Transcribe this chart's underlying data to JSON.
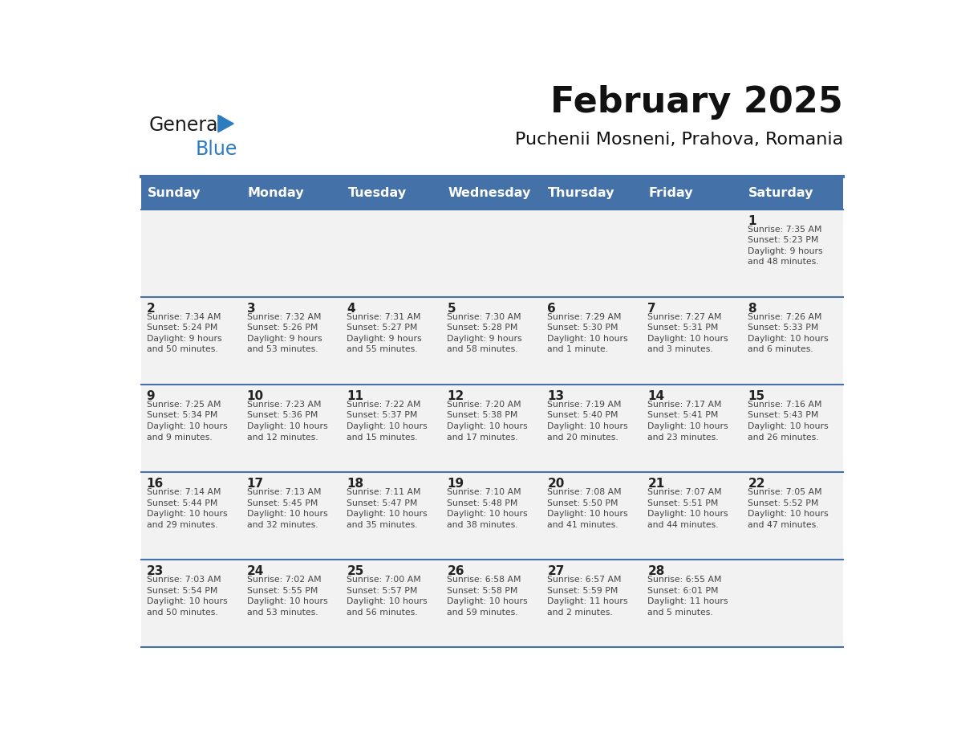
{
  "title": "February 2025",
  "subtitle": "Puchenii Mosneni, Prahova, Romania",
  "header_bg_color": "#4472a8",
  "header_text_color": "#ffffff",
  "cell_bg_color": "#f2f2f2",
  "text_color": "#444444",
  "day_number_color": "#222222",
  "line_color": "#4472a8",
  "days_of_week": [
    "Sunday",
    "Monday",
    "Tuesday",
    "Wednesday",
    "Thursday",
    "Friday",
    "Saturday"
  ],
  "calendar_data": [
    [
      {
        "day": "",
        "info": ""
      },
      {
        "day": "",
        "info": ""
      },
      {
        "day": "",
        "info": ""
      },
      {
        "day": "",
        "info": ""
      },
      {
        "day": "",
        "info": ""
      },
      {
        "day": "",
        "info": ""
      },
      {
        "day": "1",
        "info": "Sunrise: 7:35 AM\nSunset: 5:23 PM\nDaylight: 9 hours\nand 48 minutes."
      }
    ],
    [
      {
        "day": "2",
        "info": "Sunrise: 7:34 AM\nSunset: 5:24 PM\nDaylight: 9 hours\nand 50 minutes."
      },
      {
        "day": "3",
        "info": "Sunrise: 7:32 AM\nSunset: 5:26 PM\nDaylight: 9 hours\nand 53 minutes."
      },
      {
        "day": "4",
        "info": "Sunrise: 7:31 AM\nSunset: 5:27 PM\nDaylight: 9 hours\nand 55 minutes."
      },
      {
        "day": "5",
        "info": "Sunrise: 7:30 AM\nSunset: 5:28 PM\nDaylight: 9 hours\nand 58 minutes."
      },
      {
        "day": "6",
        "info": "Sunrise: 7:29 AM\nSunset: 5:30 PM\nDaylight: 10 hours\nand 1 minute."
      },
      {
        "day": "7",
        "info": "Sunrise: 7:27 AM\nSunset: 5:31 PM\nDaylight: 10 hours\nand 3 minutes."
      },
      {
        "day": "8",
        "info": "Sunrise: 7:26 AM\nSunset: 5:33 PM\nDaylight: 10 hours\nand 6 minutes."
      }
    ],
    [
      {
        "day": "9",
        "info": "Sunrise: 7:25 AM\nSunset: 5:34 PM\nDaylight: 10 hours\nand 9 minutes."
      },
      {
        "day": "10",
        "info": "Sunrise: 7:23 AM\nSunset: 5:36 PM\nDaylight: 10 hours\nand 12 minutes."
      },
      {
        "day": "11",
        "info": "Sunrise: 7:22 AM\nSunset: 5:37 PM\nDaylight: 10 hours\nand 15 minutes."
      },
      {
        "day": "12",
        "info": "Sunrise: 7:20 AM\nSunset: 5:38 PM\nDaylight: 10 hours\nand 17 minutes."
      },
      {
        "day": "13",
        "info": "Sunrise: 7:19 AM\nSunset: 5:40 PM\nDaylight: 10 hours\nand 20 minutes."
      },
      {
        "day": "14",
        "info": "Sunrise: 7:17 AM\nSunset: 5:41 PM\nDaylight: 10 hours\nand 23 minutes."
      },
      {
        "day": "15",
        "info": "Sunrise: 7:16 AM\nSunset: 5:43 PM\nDaylight: 10 hours\nand 26 minutes."
      }
    ],
    [
      {
        "day": "16",
        "info": "Sunrise: 7:14 AM\nSunset: 5:44 PM\nDaylight: 10 hours\nand 29 minutes."
      },
      {
        "day": "17",
        "info": "Sunrise: 7:13 AM\nSunset: 5:45 PM\nDaylight: 10 hours\nand 32 minutes."
      },
      {
        "day": "18",
        "info": "Sunrise: 7:11 AM\nSunset: 5:47 PM\nDaylight: 10 hours\nand 35 minutes."
      },
      {
        "day": "19",
        "info": "Sunrise: 7:10 AM\nSunset: 5:48 PM\nDaylight: 10 hours\nand 38 minutes."
      },
      {
        "day": "20",
        "info": "Sunrise: 7:08 AM\nSunset: 5:50 PM\nDaylight: 10 hours\nand 41 minutes."
      },
      {
        "day": "21",
        "info": "Sunrise: 7:07 AM\nSunset: 5:51 PM\nDaylight: 10 hours\nand 44 minutes."
      },
      {
        "day": "22",
        "info": "Sunrise: 7:05 AM\nSunset: 5:52 PM\nDaylight: 10 hours\nand 47 minutes."
      }
    ],
    [
      {
        "day": "23",
        "info": "Sunrise: 7:03 AM\nSunset: 5:54 PM\nDaylight: 10 hours\nand 50 minutes."
      },
      {
        "day": "24",
        "info": "Sunrise: 7:02 AM\nSunset: 5:55 PM\nDaylight: 10 hours\nand 53 minutes."
      },
      {
        "day": "25",
        "info": "Sunrise: 7:00 AM\nSunset: 5:57 PM\nDaylight: 10 hours\nand 56 minutes."
      },
      {
        "day": "26",
        "info": "Sunrise: 6:58 AM\nSunset: 5:58 PM\nDaylight: 10 hours\nand 59 minutes."
      },
      {
        "day": "27",
        "info": "Sunrise: 6:57 AM\nSunset: 5:59 PM\nDaylight: 11 hours\nand 2 minutes."
      },
      {
        "day": "28",
        "info": "Sunrise: 6:55 AM\nSunset: 6:01 PM\nDaylight: 11 hours\nand 5 minutes."
      },
      {
        "day": "",
        "info": ""
      }
    ]
  ],
  "logo_text_general": "General",
  "logo_text_blue": "Blue",
  "logo_color_general": "#1a1a1a",
  "logo_color_blue": "#2b7dc0",
  "logo_triangle_color": "#2b7dc0"
}
